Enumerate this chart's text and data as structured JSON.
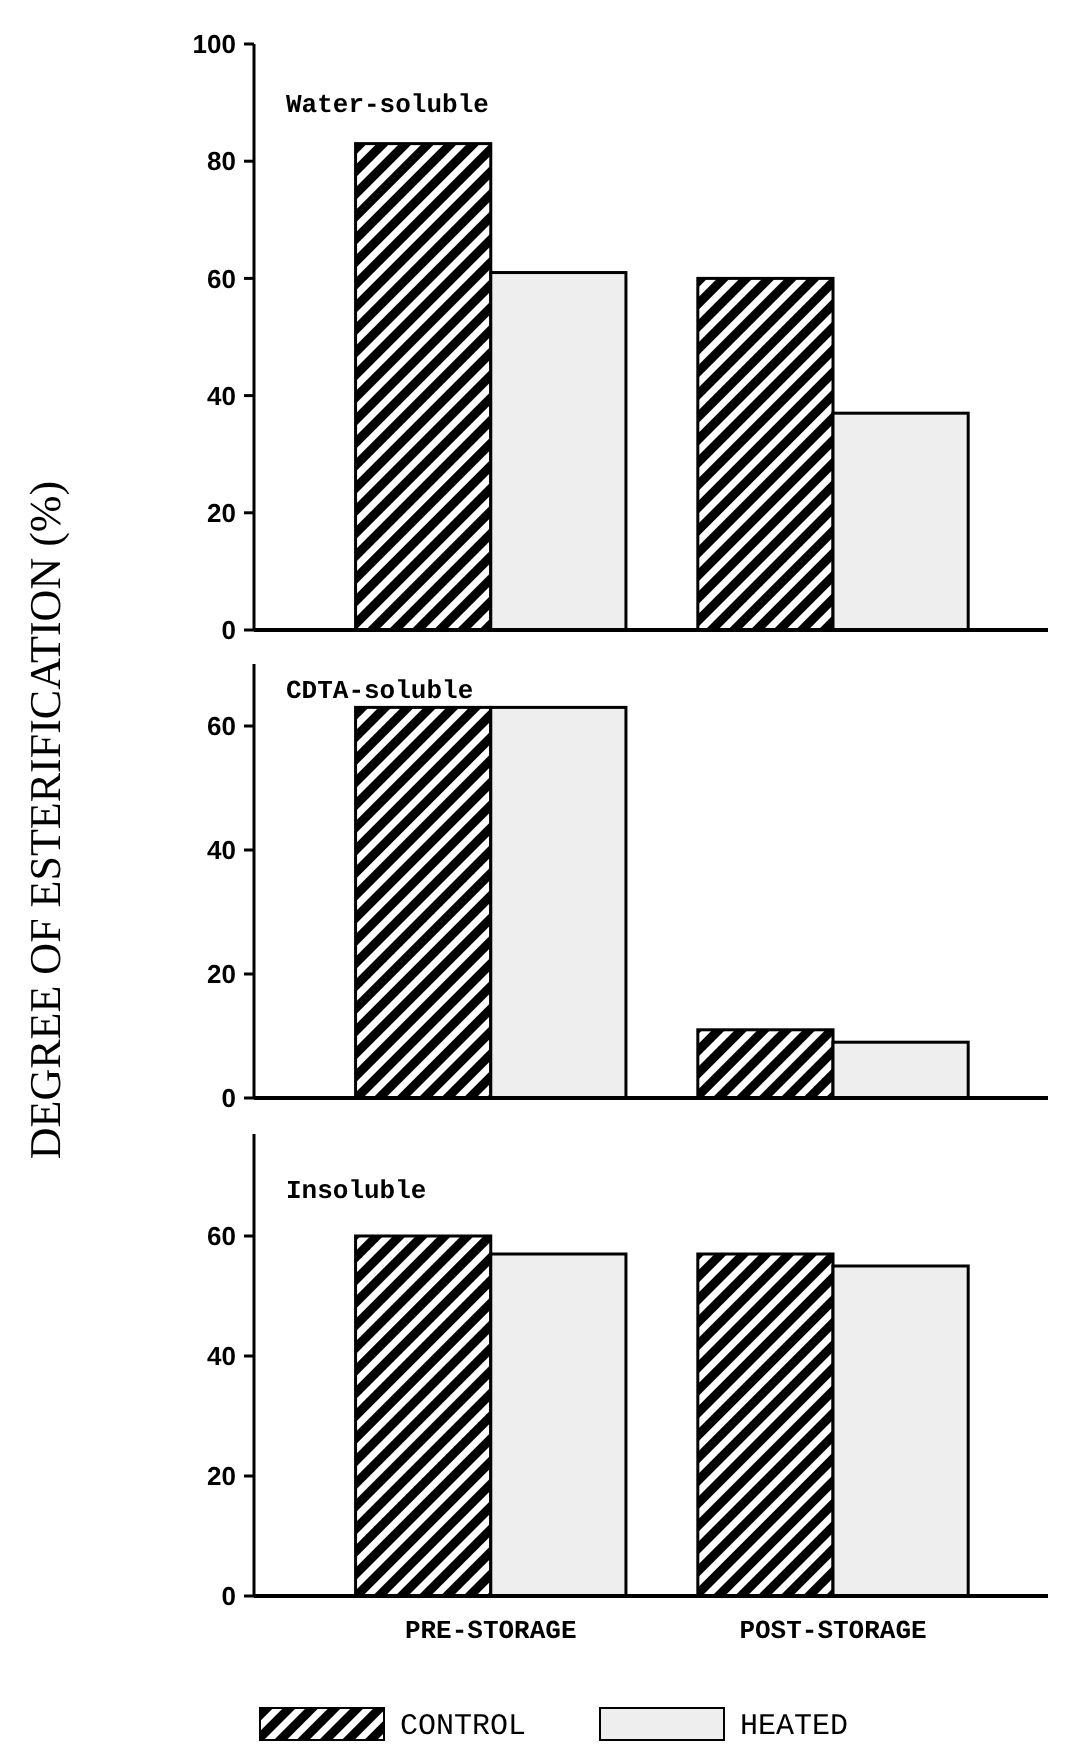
{
  "chart_data": [
    {
      "type": "bar",
      "title": "Water-soluble",
      "categories": [
        null,
        null
      ],
      "series": [
        {
          "color": "#000000",
          "values": [
            83,
            60
          ]
        },
        {
          "color": "#eeeeee",
          "values": [
            61,
            37
          ]
        }
      ],
      "ylim": [
        0,
        100
      ],
      "yticks": [
        0,
        20,
        40,
        60,
        80,
        100
      ]
    },
    {
      "type": "bar",
      "title": "CDTA-soluble",
      "ylabel": "DEGREE OF ESTERIFICATION (%)",
      "categories": [
        null,
        null
      ],
      "series": [
        {
          "color": "#000000",
          "values": [
            63,
            11
          ]
        },
        {
          "color": "#eeeeee",
          "values": [
            63,
            9
          ]
        }
      ],
      "ylim": [
        0,
        70
      ],
      "yticks": [
        0,
        20,
        40,
        60
      ]
    },
    {
      "type": "bar",
      "title": "Insoluble",
      "categories": [
        "PRE-STORAGE",
        "POST-STORAGE"
      ],
      "series": [
        {
          "name": "CONTROL",
          "color": "#000000",
          "values": [
            60,
            57
          ]
        },
        {
          "name": "HEATED",
          "color": "#eeeeee",
          "values": [
            57,
            55
          ]
        }
      ],
      "ylim": [
        0,
        77
      ],
      "yticks": [
        0,
        20,
        40,
        60
      ],
      "legend": "bottom"
    }
  ]
}
